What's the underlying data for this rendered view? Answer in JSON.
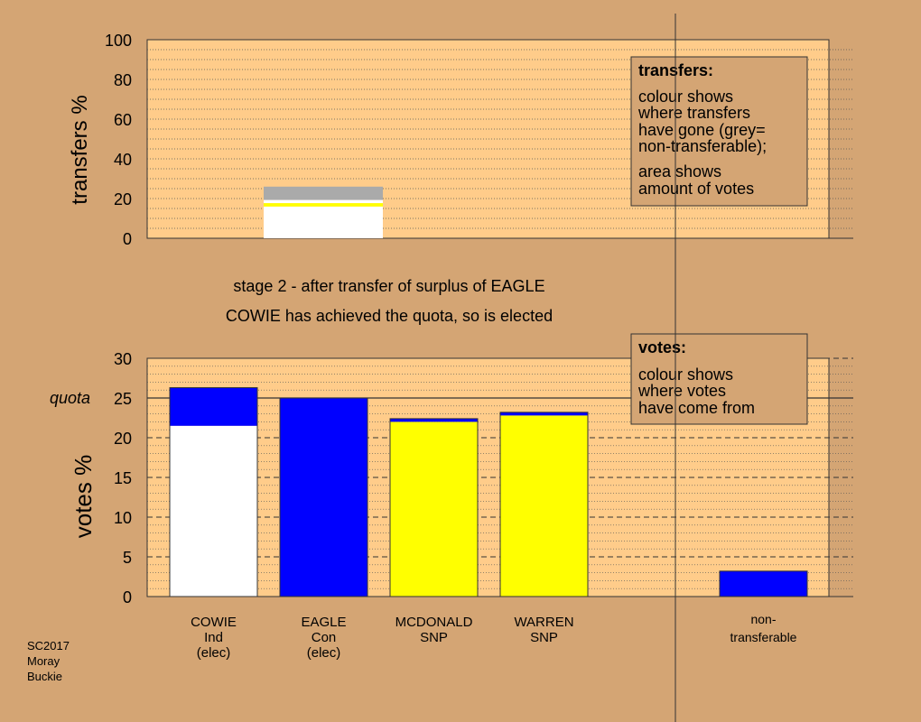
{
  "colors": {
    "background": "#d4a574",
    "plot_area": "#ffcc8a",
    "legend_box": "#d4a574",
    "white": "#ffffff",
    "blue": "#0000ff",
    "yellow": "#ffff00",
    "grey": "#aaaaaa"
  },
  "chart_data": [
    {
      "type": "bar",
      "id": "transfers",
      "ylabel": "transfers %",
      "ylim": [
        0,
        100
      ],
      "yticks": [
        0,
        20,
        40,
        60,
        80,
        100
      ],
      "bars": [
        {
          "segments": [
            {
              "from": 0,
              "to": 16,
              "color": "#ffffff"
            },
            {
              "from": 16,
              "to": 17.7,
              "color": "#ffff00"
            },
            {
              "from": 17.7,
              "to": 19.3,
              "color": "#ffffff"
            },
            {
              "from": 19.3,
              "to": 26,
              "color": "#aaaaaa"
            }
          ]
        }
      ],
      "legend": {
        "title": "transfers:",
        "lines": [
          "colour shows",
          "where transfers",
          "have gone (grey=",
          "non-transferable);"
        ],
        "lines2": [
          "area shows",
          "amount of votes"
        ]
      }
    },
    {
      "type": "bar",
      "id": "votes",
      "ylabel": "votes %",
      "ylim": [
        0,
        30
      ],
      "yticks": [
        0,
        5,
        10,
        15,
        20,
        25,
        30
      ],
      "quota": 25,
      "quota_label": "quota",
      "candidates": [
        {
          "label": [
            "COWIE",
            "Ind",
            "(elec)"
          ],
          "segments": [
            {
              "value": 21.5,
              "color": "#ffffff"
            },
            {
              "value": 4.8,
              "color": "#0000ff"
            }
          ]
        },
        {
          "label": [
            "EAGLE",
            "Con",
            "(elec)"
          ],
          "segments": [
            {
              "value": 25.0,
              "color": "#0000ff"
            }
          ]
        },
        {
          "label": [
            "MCDONALD",
            "SNP"
          ],
          "segments": [
            {
              "value": 22.0,
              "color": "#ffff00"
            },
            {
              "value": 0.4,
              "color": "#0000ff"
            }
          ]
        },
        {
          "label": [
            "WARREN",
            "SNP"
          ],
          "segments": [
            {
              "value": 22.8,
              "color": "#ffff00"
            },
            {
              "value": 0.4,
              "color": "#0000ff"
            }
          ]
        }
      ],
      "nontransferable": {
        "label": [
          "non-",
          "transferable"
        ],
        "value": 3.2,
        "color": "#0000ff"
      },
      "legend": {
        "title": "votes:",
        "lines": [
          "colour shows",
          "where votes",
          "have come from"
        ]
      }
    }
  ],
  "stage_text": "stage 2 - after transfer of surplus of EAGLE",
  "elected_text": "COWIE has achieved the quota, so is elected",
  "footer": [
    "SC2017",
    "Moray",
    "Buckie"
  ]
}
